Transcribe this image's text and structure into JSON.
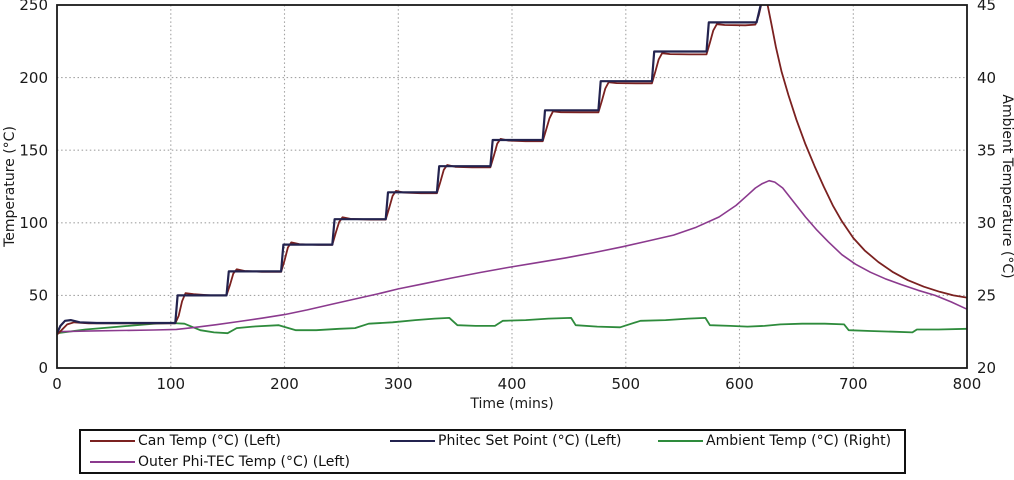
{
  "chart_data": {
    "type": "line",
    "title": "",
    "xlabel": "Time (mins)",
    "ylabel_left": "Temperature (°C)",
    "ylabel_right": "Ambient Temperature (°C)",
    "xlim": [
      0,
      800
    ],
    "ylim_left": [
      0,
      250
    ],
    "ylim_right": [
      20,
      45
    ],
    "xticks": [
      0,
      100,
      200,
      300,
      400,
      500,
      600,
      700,
      800
    ],
    "yticks_left": [
      0,
      50,
      100,
      150,
      200,
      250
    ],
    "yticks_right": [
      20,
      25,
      30,
      35,
      40,
      45
    ],
    "grid": "dotted",
    "legend_position": "bottom",
    "style": {
      "axis_color": "#1a1a1a",
      "grid_color": "#a3a3a3",
      "background": "#ffffff"
    },
    "series": [
      {
        "name": "Can Temp (°C) (Left)",
        "axis": "left",
        "color": "#7b2120",
        "width": 1.8,
        "points": [
          [
            0,
            23
          ],
          [
            4,
            26
          ],
          [
            9,
            30
          ],
          [
            15,
            31.5
          ],
          [
            28,
            30.8
          ],
          [
            60,
            30.8
          ],
          [
            104,
            30.8
          ],
          [
            107,
            36
          ],
          [
            110,
            46
          ],
          [
            113,
            51.5
          ],
          [
            120,
            50.8
          ],
          [
            135,
            50
          ],
          [
            149,
            50
          ],
          [
            152,
            57
          ],
          [
            155,
            65
          ],
          [
            158,
            68
          ],
          [
            165,
            66.8
          ],
          [
            180,
            66.2
          ],
          [
            197,
            66.2
          ],
          [
            200,
            74
          ],
          [
            203,
            83
          ],
          [
            206,
            86.5
          ],
          [
            213,
            85.3
          ],
          [
            230,
            84.8
          ],
          [
            242,
            84.8
          ],
          [
            245,
            93
          ],
          [
            248,
            100.5
          ],
          [
            251,
            103.8
          ],
          [
            258,
            102.7
          ],
          [
            275,
            102.2
          ],
          [
            289,
            102.2
          ],
          [
            292,
            110
          ],
          [
            295,
            118.5
          ],
          [
            298,
            122
          ],
          [
            305,
            120.8
          ],
          [
            320,
            120.4
          ],
          [
            334,
            120.4
          ],
          [
            337,
            128
          ],
          [
            340,
            136.5
          ],
          [
            343,
            139.8
          ],
          [
            350,
            138.6
          ],
          [
            365,
            138.2
          ],
          [
            381,
            138.2
          ],
          [
            384,
            146
          ],
          [
            387,
            154.5
          ],
          [
            390,
            157.8
          ],
          [
            397,
            156.6
          ],
          [
            412,
            156.2
          ],
          [
            427,
            156.2
          ],
          [
            430,
            164
          ],
          [
            433,
            172
          ],
          [
            436,
            176.8
          ],
          [
            443,
            176.2
          ],
          [
            460,
            176
          ],
          [
            476,
            176
          ],
          [
            479,
            184
          ],
          [
            482,
            192.5
          ],
          [
            485,
            196.8
          ],
          [
            492,
            196.2
          ],
          [
            510,
            196
          ],
          [
            523,
            196
          ],
          [
            526,
            204
          ],
          [
            529,
            212.5
          ],
          [
            532,
            216.8
          ],
          [
            539,
            216.2
          ],
          [
            556,
            216
          ],
          [
            571,
            216
          ],
          [
            574,
            224
          ],
          [
            577,
            232.5
          ],
          [
            580,
            236.8
          ],
          [
            587,
            236.2
          ],
          [
            605,
            236
          ],
          [
            614,
            236.5
          ],
          [
            617,
            243
          ],
          [
            619,
            250
          ],
          [
            621,
            256
          ],
          [
            623,
            256
          ],
          [
            625,
            249
          ],
          [
            628,
            237
          ],
          [
            632,
            221
          ],
          [
            637,
            204
          ],
          [
            643,
            188
          ],
          [
            650,
            171
          ],
          [
            658,
            154
          ],
          [
            666,
            139
          ],
          [
            674,
            125
          ],
          [
            682,
            112
          ],
          [
            690,
            101
          ],
          [
            700,
            89.5
          ],
          [
            710,
            81
          ],
          [
            722,
            73
          ],
          [
            735,
            66
          ],
          [
            748,
            60.5
          ],
          [
            762,
            56
          ],
          [
            776,
            52.5
          ],
          [
            788,
            50
          ],
          [
            800,
            48.5
          ]
        ]
      },
      {
        "name": "Phitec Set Point (°C) (Left)",
        "axis": "left",
        "color": "#23234f",
        "width": 2.2,
        "points": [
          [
            0,
            24
          ],
          [
            3,
            29
          ],
          [
            7,
            32.5
          ],
          [
            12,
            33
          ],
          [
            20,
            31.5
          ],
          [
            35,
            31
          ],
          [
            104,
            31
          ],
          [
            106,
            50
          ],
          [
            149,
            50
          ],
          [
            151,
            66.5
          ],
          [
            197,
            66.5
          ],
          [
            199,
            85
          ],
          [
            242,
            85
          ],
          [
            244,
            102.5
          ],
          [
            289,
            102.5
          ],
          [
            291,
            121
          ],
          [
            334,
            121
          ],
          [
            336,
            139
          ],
          [
            381,
            139
          ],
          [
            383,
            157
          ],
          [
            427,
            157
          ],
          [
            429,
            177.5
          ],
          [
            476,
            177.5
          ],
          [
            478,
            197.5
          ],
          [
            523,
            197.5
          ],
          [
            525,
            218
          ],
          [
            571,
            218
          ],
          [
            573,
            238
          ],
          [
            615,
            238
          ],
          [
            618,
            248
          ],
          [
            620,
            254
          ]
        ]
      },
      {
        "name": "Ambient Temp (°C) (Right)",
        "axis": "right",
        "color": "#2e8b3c",
        "width": 1.8,
        "points": [
          [
            0,
            22.4
          ],
          [
            25,
            22.65
          ],
          [
            55,
            22.85
          ],
          [
            85,
            23.05
          ],
          [
            100,
            23.1
          ],
          [
            112,
            23.05
          ],
          [
            126,
            22.6
          ],
          [
            138,
            22.45
          ],
          [
            150,
            22.4
          ],
          [
            158,
            22.75
          ],
          [
            172,
            22.85
          ],
          [
            195,
            22.95
          ],
          [
            210,
            22.6
          ],
          [
            228,
            22.6
          ],
          [
            248,
            22.7
          ],
          [
            262,
            22.75
          ],
          [
            274,
            23.05
          ],
          [
            295,
            23.15
          ],
          [
            315,
            23.3
          ],
          [
            332,
            23.4
          ],
          [
            345,
            23.45
          ],
          [
            352,
            22.95
          ],
          [
            368,
            22.9
          ],
          [
            385,
            22.9
          ],
          [
            392,
            23.25
          ],
          [
            412,
            23.3
          ],
          [
            432,
            23.4
          ],
          [
            452,
            23.45
          ],
          [
            456,
            22.95
          ],
          [
            475,
            22.85
          ],
          [
            495,
            22.8
          ],
          [
            513,
            23.25
          ],
          [
            535,
            23.3
          ],
          [
            555,
            23.4
          ],
          [
            570,
            23.45
          ],
          [
            574,
            22.95
          ],
          [
            592,
            22.9
          ],
          [
            607,
            22.85
          ],
          [
            622,
            22.9
          ],
          [
            636,
            23.0
          ],
          [
            655,
            23.05
          ],
          [
            675,
            23.05
          ],
          [
            692,
            23.0
          ],
          [
            696,
            22.6
          ],
          [
            715,
            22.55
          ],
          [
            735,
            22.5
          ],
          [
            752,
            22.45
          ],
          [
            756,
            22.65
          ],
          [
            775,
            22.65
          ],
          [
            800,
            22.7
          ]
        ]
      },
      {
        "name": "Outer Phi-TEC Temp (°C) (Left)",
        "axis": "left",
        "color": "#8b3a8e",
        "width": 1.6,
        "points": [
          [
            0,
            25
          ],
          [
            25,
            25.4
          ],
          [
            55,
            25.8
          ],
          [
            85,
            26.2
          ],
          [
            105,
            26.6
          ],
          [
            120,
            27.8
          ],
          [
            140,
            29.8
          ],
          [
            160,
            32
          ],
          [
            180,
            34.3
          ],
          [
            200,
            36.8
          ],
          [
            220,
            40
          ],
          [
            242,
            44
          ],
          [
            262,
            47.5
          ],
          [
            282,
            51
          ],
          [
            300,
            54.5
          ],
          [
            322,
            58
          ],
          [
            347,
            62
          ],
          [
            372,
            65.8
          ],
          [
            397,
            69.3
          ],
          [
            422,
            72.5
          ],
          [
            447,
            75.8
          ],
          [
            472,
            79.5
          ],
          [
            497,
            83.5
          ],
          [
            520,
            87.5
          ],
          [
            542,
            91.5
          ],
          [
            562,
            97
          ],
          [
            582,
            104
          ],
          [
            597,
            112
          ],
          [
            607,
            119
          ],
          [
            614,
            124
          ],
          [
            620,
            127
          ],
          [
            626,
            129
          ],
          [
            631,
            128
          ],
          [
            638,
            124
          ],
          [
            648,
            114
          ],
          [
            658,
            104
          ],
          [
            668,
            95
          ],
          [
            678,
            87
          ],
          [
            690,
            78
          ],
          [
            702,
            71.5
          ],
          [
            715,
            66
          ],
          [
            728,
            61.5
          ],
          [
            742,
            57.5
          ],
          [
            757,
            53.5
          ],
          [
            772,
            50
          ],
          [
            786,
            45.5
          ],
          [
            800,
            40.5
          ]
        ]
      }
    ],
    "legend_order": [
      0,
      1,
      2,
      3
    ]
  }
}
